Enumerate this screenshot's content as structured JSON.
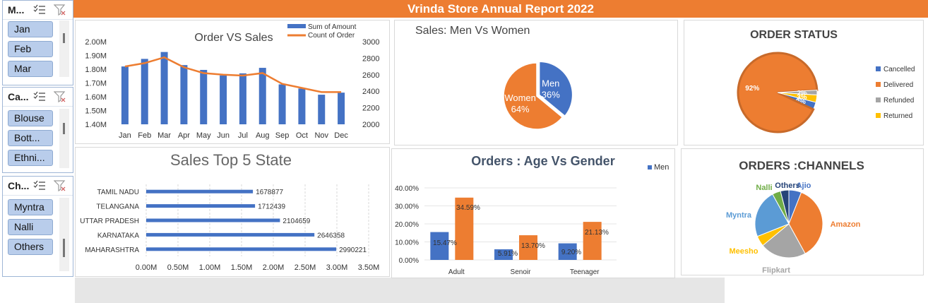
{
  "header": {
    "title": "Vrinda Store Annual Report  2022"
  },
  "slicers": [
    {
      "title": "M...",
      "items": [
        "Jan",
        "Feb",
        "Mar"
      ]
    },
    {
      "title": "Ca...",
      "items": [
        "Blouse",
        "Bott...",
        "Ethni..."
      ]
    },
    {
      "title": "Ch...",
      "items": [
        "Myntra",
        "Nalli",
        "Others"
      ]
    }
  ],
  "colors": {
    "blue": "#4472c4",
    "orange": "#ed7d31",
    "gray": "#a5a5a5",
    "yellow": "#ffc000",
    "green": "#70ad47",
    "navy": "#264478",
    "header": "#ed7d31"
  },
  "chart_data": [
    {
      "type": "bar",
      "title": "Order VS Sales",
      "categories": [
        "Jan",
        "Feb",
        "Mar",
        "Apr",
        "May",
        "Jun",
        "Jul",
        "Aug",
        "Sep",
        "Oct",
        "Nov",
        "Dec"
      ],
      "series": [
        {
          "name": "Sum of Amount",
          "type": "bar",
          "axis": "left",
          "values": [
            1820000,
            1875000,
            1925000,
            1830000,
            1795000,
            1755000,
            1770000,
            1810000,
            1690000,
            1660000,
            1615000,
            1630000
          ]
        },
        {
          "name": "Count of Order",
          "type": "line",
          "axis": "right",
          "values": [
            2700,
            2740,
            2810,
            2690,
            2620,
            2600,
            2590,
            2620,
            2490,
            2440,
            2390,
            2390
          ]
        }
      ],
      "ylim": [
        1400000,
        2000000
      ],
      "ylim_right": [
        2000,
        3000
      ],
      "yticks": [
        "2.00M",
        "1.90M",
        "1.80M",
        "1.70M",
        "1.60M",
        "1.50M",
        "1.40M"
      ],
      "yticks_right": [
        "3000",
        "2800",
        "2600",
        "2400",
        "2200",
        "2000"
      ],
      "legend": "top-right"
    },
    {
      "type": "pie",
      "title": "Sales: Men Vs Women",
      "labels": [
        "Men",
        "Women"
      ],
      "values": [
        36,
        64
      ],
      "display": [
        "36%",
        "64%"
      ]
    },
    {
      "type": "pie",
      "title": "ORDER STATUS",
      "labels": [
        "Cancelled",
        "Delivered",
        "Refunded",
        "Returned"
      ],
      "values": [
        3,
        92,
        2,
        3
      ],
      "display": [
        "3%",
        "92%",
        "2%",
        "3%"
      ],
      "legend": "right"
    },
    {
      "type": "bar",
      "orientation": "horizontal",
      "title": "Sales Top 5 State",
      "categories": [
        "MAHARASHTRA",
        "KARNATAKA",
        "UTTAR PRADESH",
        "TELANGANA",
        "TAMIL NADU"
      ],
      "values": [
        2990221,
        2646358,
        2104659,
        1712439,
        1678877
      ],
      "display": [
        "2990221",
        "2646358",
        "2104659",
        "1712439",
        "1678877"
      ],
      "xlim": [
        0,
        3500000
      ],
      "xticks": [
        "0.00M",
        "0.50M",
        "1.00M",
        "1.50M",
        "2.00M",
        "2.50M",
        "3.00M",
        "3.50M"
      ]
    },
    {
      "type": "bar",
      "title": "Orders : Age Vs Gender",
      "categories": [
        "Adult",
        "Senoir",
        "Teenager"
      ],
      "series": [
        {
          "name": "Men",
          "values": [
            15.47,
            5.91,
            9.2
          ],
          "display": [
            "15.47%",
            "5.91%",
            "9.20%"
          ]
        },
        {
          "values": [
            34.59,
            13.7,
            21.13
          ],
          "display": [
            "34.59%",
            "13.70%",
            "21.13%"
          ]
        }
      ],
      "ylim": [
        0,
        40
      ],
      "yticks": [
        "40.00%",
        "30.00%",
        "20.00%",
        "10.00%",
        "0.00%"
      ],
      "legend": "top-right"
    },
    {
      "type": "pie",
      "title": "ORDERS :CHANNELS",
      "labels": [
        "Ajio",
        "Amazon",
        "Flipkart",
        "Meesho",
        "Myntra",
        "Nalli",
        "Others"
      ],
      "values": [
        6,
        36,
        22,
        5,
        23,
        4,
        4
      ]
    }
  ]
}
